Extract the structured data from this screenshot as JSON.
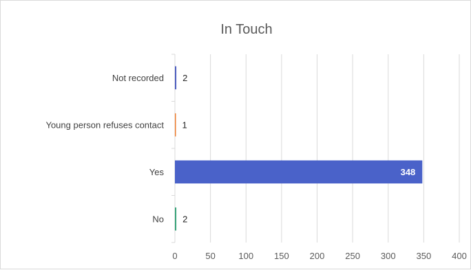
{
  "chart_data": {
    "type": "bar",
    "orientation": "horizontal",
    "title": "In Touch",
    "categories": [
      "Not recorded",
      "Young person refuses contact",
      "Yes",
      "No"
    ],
    "values": [
      2,
      1,
      348,
      2
    ],
    "bar_colors": [
      "#4f5fbf",
      "#ed7d31",
      "#4a62c9",
      "#3aa37a"
    ],
    "xlim": [
      0,
      400
    ],
    "xticks": [
      "0",
      "50",
      "100",
      "150",
      "200",
      "250",
      "300",
      "350",
      "400"
    ],
    "grid": true,
    "legend": "none",
    "data_labels": [
      "2",
      "1",
      "348",
      "2"
    ]
  }
}
